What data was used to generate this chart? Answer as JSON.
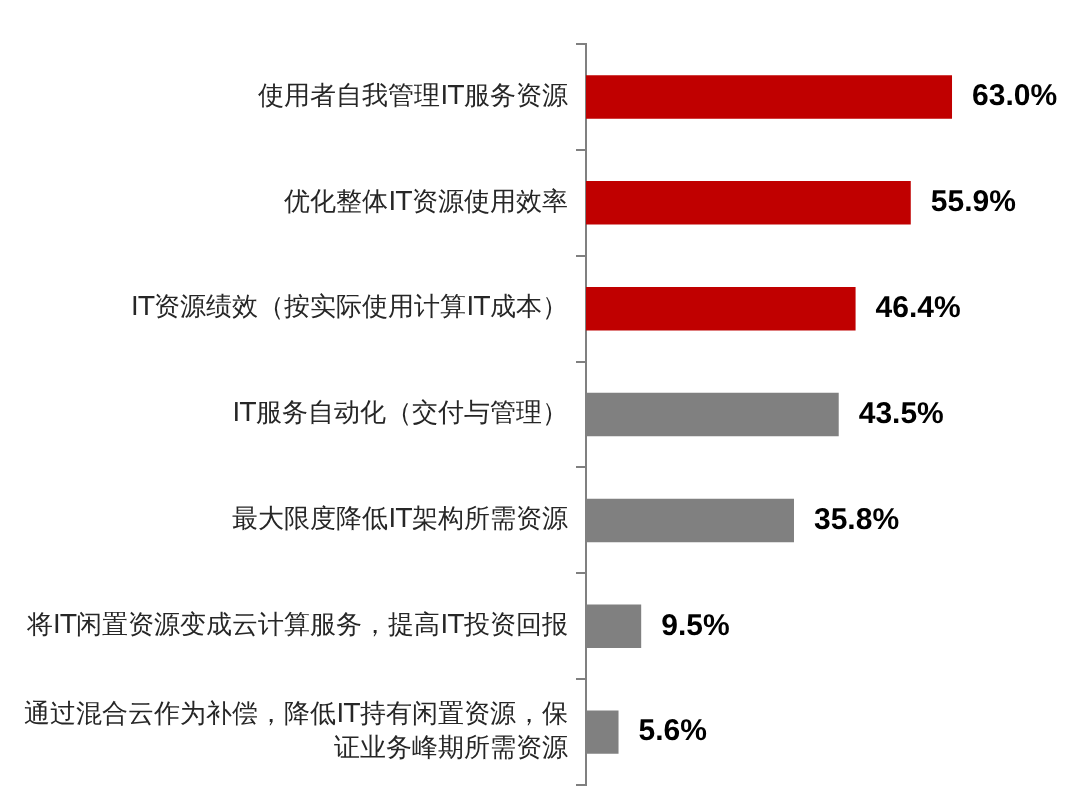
{
  "chart_data": {
    "type": "bar",
    "orientation": "horizontal",
    "categories": [
      "使用者自我管理IT服务资源",
      "优化整体IT资源使用效率",
      "IT资源绩效（按实际使用计算IT成本）",
      "IT服务自动化（交付与管理）",
      "最大限度降低IT架构所需资源",
      "将IT闲置资源变成云计算服务，提高IT投资回报",
      "通过混合云作为补偿，降低IT持有闲置资源，保证业务峰期所需资源"
    ],
    "values": [
      63.0,
      55.9,
      46.4,
      43.5,
      35.8,
      9.5,
      5.6
    ],
    "colors": [
      "#c00000",
      "#c00000",
      "#c00000",
      "#808080",
      "#808080",
      "#808080",
      "#808080"
    ],
    "value_labels": [
      "63.0%",
      "55.9%",
      "46.4%",
      "43.5%",
      "35.8%",
      "9.5%",
      "5.6%"
    ],
    "tick_labels": "y",
    "grid": false,
    "legend": false
  }
}
